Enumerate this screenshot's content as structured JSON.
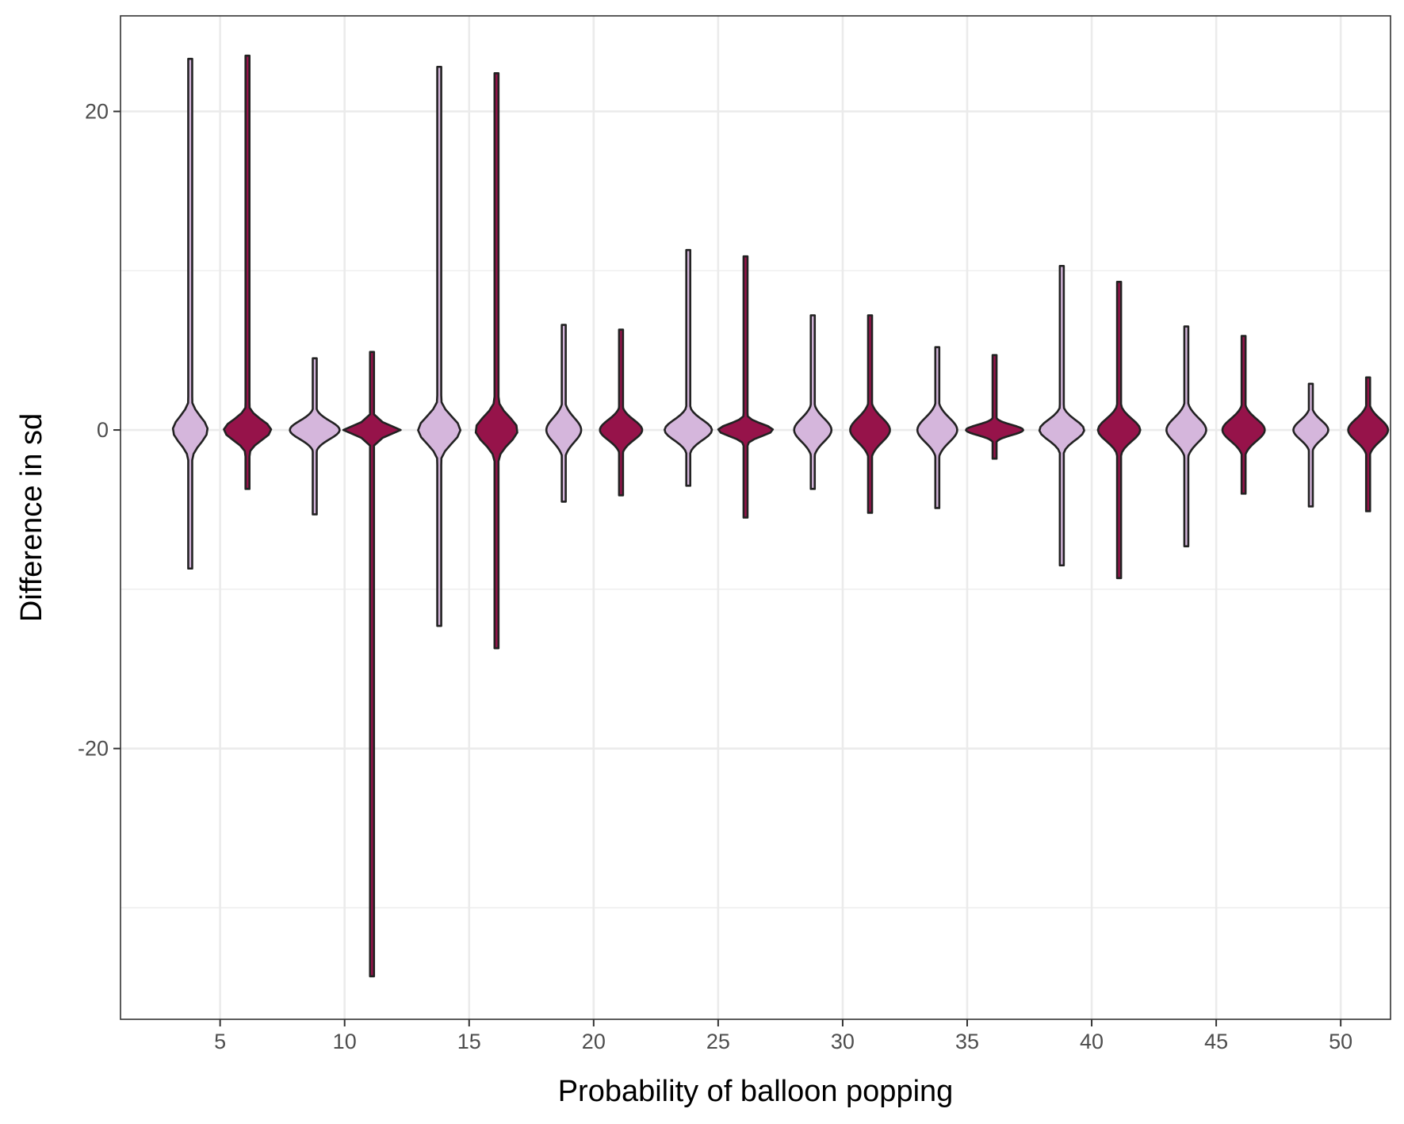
{
  "chart_data": {
    "type": "violin",
    "xlabel": "Probability of balloon popping",
    "ylabel": "Difference in sd",
    "xlim": [
      1,
      52
    ],
    "ylim": [
      -37,
      26
    ],
    "x_ticks": [
      5,
      10,
      15,
      20,
      25,
      30,
      35,
      40,
      45,
      50
    ],
    "x_tick_labels": [
      "5",
      "10",
      "15",
      "20",
      "25",
      "30",
      "35",
      "40",
      "45",
      "50"
    ],
    "y_ticks": [
      -20,
      0,
      20
    ],
    "y_tick_labels": [
      "-20",
      "0",
      "20"
    ],
    "grid": true,
    "legend": "none",
    "colors": {
      "light": "#d5b6dc",
      "dark": "#96134a",
      "outline": "#222222"
    },
    "violins": [
      {
        "x": 3.8,
        "group": "light",
        "min": -8.7,
        "max": 23.3,
        "half_width": 0.7,
        "core": 1.3
      },
      {
        "x": 6.1,
        "group": "dark",
        "min": -3.7,
        "max": 23.5,
        "half_width": 0.95,
        "core": 1.0
      },
      {
        "x": 8.8,
        "group": "light",
        "min": -5.3,
        "max": 4.5,
        "half_width": 1.0,
        "core": 0.9
      },
      {
        "x": 11.1,
        "group": "dark",
        "min": -34.3,
        "max": 4.9,
        "half_width": 1.15,
        "core": 0.55
      },
      {
        "x": 13.8,
        "group": "light",
        "min": -12.3,
        "max": 22.8,
        "half_width": 0.85,
        "core": 1.3
      },
      {
        "x": 16.1,
        "group": "dark",
        "min": -13.7,
        "max": 22.4,
        "half_width": 0.85,
        "core": 1.3
      },
      {
        "x": 18.8,
        "group": "light",
        "min": -4.5,
        "max": 6.6,
        "half_width": 0.7,
        "core": 1.2
      },
      {
        "x": 21.1,
        "group": "dark",
        "min": -4.1,
        "max": 6.3,
        "half_width": 0.85,
        "core": 1.0
      },
      {
        "x": 23.8,
        "group": "light",
        "min": -3.5,
        "max": 11.3,
        "half_width": 0.95,
        "core": 1.0
      },
      {
        "x": 26.1,
        "group": "dark",
        "min": -5.5,
        "max": 10.9,
        "half_width": 1.1,
        "core": 0.6
      },
      {
        "x": 28.8,
        "group": "light",
        "min": -3.7,
        "max": 7.2,
        "half_width": 0.75,
        "core": 1.15
      },
      {
        "x": 31.1,
        "group": "dark",
        "min": -5.2,
        "max": 7.2,
        "half_width": 0.8,
        "core": 1.2
      },
      {
        "x": 33.8,
        "group": "light",
        "min": -4.9,
        "max": 5.2,
        "half_width": 0.8,
        "core": 1.2
      },
      {
        "x": 36.1,
        "group": "dark",
        "min": -1.8,
        "max": 4.7,
        "half_width": 1.15,
        "core": 0.5
      },
      {
        "x": 38.8,
        "group": "light",
        "min": -8.5,
        "max": 10.3,
        "half_width": 0.9,
        "core": 1.0
      },
      {
        "x": 41.1,
        "group": "dark",
        "min": -9.3,
        "max": 9.3,
        "half_width": 0.85,
        "core": 1.1
      },
      {
        "x": 43.8,
        "group": "light",
        "min": -7.3,
        "max": 6.5,
        "half_width": 0.8,
        "core": 1.2
      },
      {
        "x": 46.1,
        "group": "dark",
        "min": -4.0,
        "max": 5.9,
        "half_width": 0.85,
        "core": 1.1
      },
      {
        "x": 48.8,
        "group": "light",
        "min": -4.8,
        "max": 2.9,
        "half_width": 0.7,
        "core": 0.95
      },
      {
        "x": 51.1,
        "group": "dark",
        "min": -5.1,
        "max": 3.3,
        "half_width": 0.8,
        "core": 1.1
      }
    ]
  }
}
